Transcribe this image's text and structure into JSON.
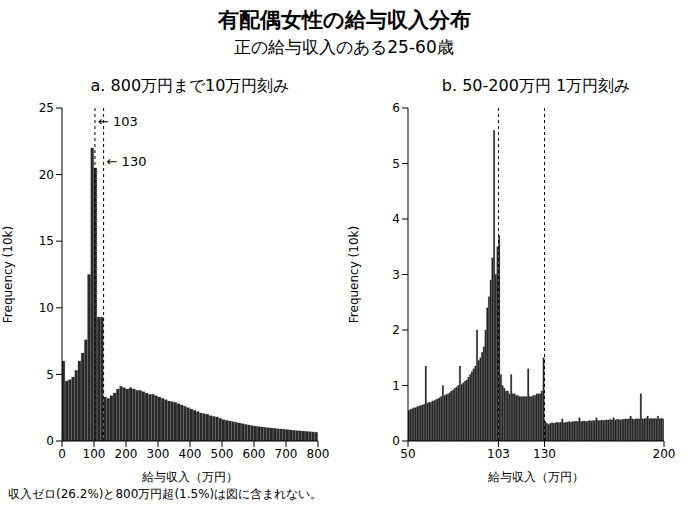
{
  "title": "有配偶女性の給与収入分布",
  "subtitle": "正の給与収入のある25-60歳",
  "note": "収入ゼロ(26.2%)と800万円超(1.5%)は図に含まれない。",
  "chart_data": [
    {
      "type": "histogram",
      "title": "a. 800万円まで10万円刻み",
      "x_label": "給与収入（万円）",
      "y_label": "Frequency (10k)",
      "color": "#2b2b2b",
      "xlim": [
        0,
        800
      ],
      "ylim": [
        0,
        25
      ],
      "xticks": [
        0,
        100,
        200,
        300,
        400,
        500,
        600,
        700,
        800
      ],
      "yticks": [
        0,
        5,
        10,
        15,
        20,
        25
      ],
      "vlines": [
        103,
        130
      ],
      "annotations": [
        {
          "x": 103,
          "y": 24,
          "label": "← 103"
        },
        {
          "x": 130,
          "y": 21,
          "label": "← 130"
        }
      ],
      "bins": [
        0,
        10,
        20,
        30,
        40,
        50,
        60,
        70,
        80,
        90,
        100,
        110,
        120,
        130,
        140,
        150,
        160,
        170,
        180,
        190,
        200,
        210,
        220,
        230,
        240,
        250,
        260,
        270,
        280,
        290,
        300,
        310,
        320,
        330,
        340,
        350,
        360,
        370,
        380,
        390,
        400,
        410,
        420,
        430,
        440,
        450,
        460,
        470,
        480,
        490,
        500,
        510,
        520,
        530,
        540,
        550,
        560,
        570,
        580,
        590,
        600,
        610,
        620,
        630,
        640,
        650,
        660,
        670,
        680,
        690,
        700,
        710,
        720,
        730,
        740,
        750,
        760,
        770,
        780,
        790,
        800
      ],
      "values": [
        6.0,
        4.5,
        4.6,
        4.8,
        5.3,
        6.0,
        6.6,
        7.6,
        12.5,
        22.0,
        20.5,
        9.3,
        9.3,
        3.3,
        3.2,
        3.4,
        3.6,
        3.9,
        4.1,
        4.0,
        3.9,
        4.0,
        3.9,
        3.8,
        3.8,
        3.7,
        3.6,
        3.5,
        3.5,
        3.4,
        3.3,
        3.2,
        3.1,
        3.0,
        2.95,
        2.9,
        2.8,
        2.7,
        2.6,
        2.5,
        2.4,
        2.3,
        2.2,
        2.1,
        2.05,
        2.0,
        1.9,
        1.85,
        1.8,
        1.7,
        1.6,
        1.55,
        1.5,
        1.45,
        1.4,
        1.35,
        1.3,
        1.25,
        1.2,
        1.15,
        1.1,
        1.08,
        1.05,
        1.02,
        1.0,
        0.97,
        0.95,
        0.92,
        0.9,
        0.88,
        0.85,
        0.83,
        0.8,
        0.78,
        0.76,
        0.74,
        0.72,
        0.7,
        0.68,
        0.66
      ]
    },
    {
      "type": "histogram",
      "title": "b. 50-200万円 1万円刻み",
      "x_label": "給与収入（万円）",
      "y_label": "Frequency (10k)",
      "color": "#2b2b2b",
      "xlim": [
        50,
        200
      ],
      "ylim": [
        0,
        6
      ],
      "xticks": [
        50,
        103,
        130,
        200
      ],
      "yticks": [
        0,
        1,
        2,
        3,
        4,
        5,
        6
      ],
      "vlines": [
        103,
        130
      ],
      "annotations": [],
      "bins": [
        50,
        51,
        52,
        53,
        54,
        55,
        56,
        57,
        58,
        59,
        60,
        61,
        62,
        63,
        64,
        65,
        66,
        67,
        68,
        69,
        70,
        71,
        72,
        73,
        74,
        75,
        76,
        77,
        78,
        79,
        80,
        81,
        82,
        83,
        84,
        85,
        86,
        87,
        88,
        89,
        90,
        91,
        92,
        93,
        94,
        95,
        96,
        97,
        98,
        99,
        100,
        101,
        102,
        103,
        104,
        105,
        106,
        107,
        108,
        109,
        110,
        111,
        112,
        113,
        114,
        115,
        116,
        117,
        118,
        119,
        120,
        121,
        122,
        123,
        124,
        125,
        126,
        127,
        128,
        129,
        130,
        131,
        132,
        133,
        134,
        135,
        136,
        137,
        138,
        139,
        140,
        141,
        142,
        143,
        144,
        145,
        146,
        147,
        148,
        149,
        150,
        151,
        152,
        153,
        154,
        155,
        156,
        157,
        158,
        159,
        160,
        161,
        162,
        163,
        164,
        165,
        166,
        167,
        168,
        169,
        170,
        171,
        172,
        173,
        174,
        175,
        176,
        177,
        178,
        179,
        180,
        181,
        182,
        183,
        184,
        185,
        186,
        187,
        188,
        189,
        190,
        191,
        192,
        193,
        194,
        195,
        196,
        197,
        198,
        199,
        200
      ],
      "values": [
        0.55,
        0.57,
        0.58,
        0.6,
        0.6,
        0.62,
        0.63,
        0.64,
        0.65,
        0.66,
        1.35,
        0.68,
        0.7,
        0.7,
        0.72,
        0.73,
        0.75,
        0.76,
        0.78,
        0.8,
        1.0,
        0.82,
        0.84,
        0.85,
        0.87,
        0.9,
        0.92,
        0.95,
        0.97,
        1.0,
        1.35,
        1.02,
        1.05,
        1.08,
        1.1,
        1.15,
        1.2,
        1.25,
        1.3,
        1.35,
        2.0,
        1.45,
        1.5,
        1.6,
        1.7,
        2.0,
        2.4,
        2.6,
        2.9,
        3.3,
        5.6,
        3.0,
        3.5,
        3.7,
        1.2,
        1.0,
        0.95,
        0.9,
        0.9,
        0.85,
        1.2,
        0.85,
        0.85,
        0.82,
        0.82,
        0.8,
        0.8,
        0.8,
        0.8,
        0.8,
        1.3,
        0.8,
        0.8,
        0.82,
        0.82,
        0.85,
        0.85,
        0.85,
        0.9,
        1.5,
        0.35,
        0.32,
        0.3,
        0.32,
        0.33,
        0.32,
        0.33,
        0.34,
        0.33,
        0.34,
        0.4,
        0.33,
        0.34,
        0.34,
        0.35,
        0.34,
        0.35,
        0.35,
        0.36,
        0.35,
        0.42,
        0.35,
        0.36,
        0.36,
        0.35,
        0.36,
        0.37,
        0.36,
        0.37,
        0.37,
        0.42,
        0.37,
        0.37,
        0.38,
        0.37,
        0.38,
        0.38,
        0.38,
        0.39,
        0.38,
        0.42,
        0.38,
        0.39,
        0.39,
        0.38,
        0.39,
        0.39,
        0.4,
        0.39,
        0.4,
        0.45,
        0.4,
        0.39,
        0.4,
        0.4,
        0.4,
        0.85,
        0.4,
        0.4,
        0.41,
        0.45,
        0.4,
        0.41,
        0.4,
        0.41,
        0.4,
        0.45,
        0.4,
        0.41,
        0.4
      ]
    }
  ]
}
